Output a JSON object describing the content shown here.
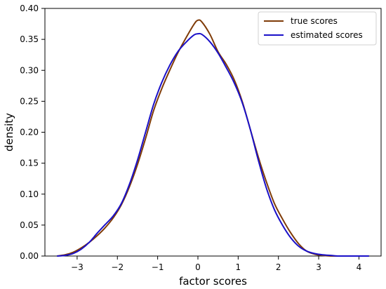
{
  "chart_data": {
    "type": "line",
    "title": "",
    "xlabel": "factor scores",
    "ylabel": "density",
    "xlim": [
      -3.8,
      4.55
    ],
    "ylim": [
      0,
      0.4
    ],
    "xticks": [
      -3,
      -2,
      -1,
      0,
      1,
      2,
      3,
      4
    ],
    "yticks": [
      0.0,
      0.05,
      0.1,
      0.15,
      0.2,
      0.25,
      0.3,
      0.35,
      0.4
    ],
    "xtick_labels": [
      "−3",
      "−2",
      "−1",
      "0",
      "1",
      "2",
      "3",
      "4"
    ],
    "ytick_labels": [
      "0.00",
      "0.05",
      "0.10",
      "0.15",
      "0.20",
      "0.25",
      "0.30",
      "0.35",
      "0.40"
    ],
    "grid": false,
    "legend_position": "top-right",
    "series": [
      {
        "name": "true scores",
        "color": "#7f3b08",
        "x": [
          -3.5,
          -3.3,
          -3.1,
          -2.9,
          -2.7,
          -2.5,
          -2.3,
          -2.1,
          -1.9,
          -1.7,
          -1.5,
          -1.3,
          -1.1,
          -0.9,
          -0.7,
          -0.5,
          -0.3,
          -0.1,
          0.0,
          0.1,
          0.3,
          0.5,
          0.7,
          0.9,
          1.1,
          1.3,
          1.5,
          1.7,
          1.9,
          2.1,
          2.3,
          2.5,
          2.7,
          2.9,
          3.1,
          3.3,
          3.5,
          3.7,
          3.9,
          4.1,
          4.25
        ],
        "y": [
          0.0,
          0.002,
          0.006,
          0.013,
          0.022,
          0.033,
          0.046,
          0.062,
          0.083,
          0.112,
          0.148,
          0.19,
          0.235,
          0.27,
          0.3,
          0.328,
          0.352,
          0.374,
          0.381,
          0.378,
          0.358,
          0.33,
          0.31,
          0.285,
          0.25,
          0.205,
          0.16,
          0.12,
          0.085,
          0.06,
          0.038,
          0.02,
          0.008,
          0.003,
          0.001,
          0.0,
          0.0,
          0.0,
          0.0,
          0.0,
          0.0
        ]
      },
      {
        "name": "estimated scores",
        "color": "#1a10c8",
        "x": [
          -3.5,
          -3.3,
          -3.1,
          -2.9,
          -2.7,
          -2.5,
          -2.3,
          -2.1,
          -1.9,
          -1.7,
          -1.5,
          -1.3,
          -1.1,
          -0.9,
          -0.7,
          -0.5,
          -0.3,
          -0.1,
          0.0,
          0.1,
          0.3,
          0.5,
          0.7,
          0.9,
          1.1,
          1.3,
          1.5,
          1.7,
          1.9,
          2.1,
          2.3,
          2.5,
          2.7,
          2.9,
          3.1,
          3.3,
          3.5,
          3.7,
          3.9,
          4.1,
          4.25
        ],
        "y": [
          0.0,
          0.001,
          0.004,
          0.011,
          0.022,
          0.037,
          0.051,
          0.065,
          0.085,
          0.116,
          0.155,
          0.2,
          0.245,
          0.28,
          0.308,
          0.33,
          0.345,
          0.357,
          0.359,
          0.358,
          0.346,
          0.328,
          0.305,
          0.28,
          0.248,
          0.205,
          0.155,
          0.11,
          0.075,
          0.05,
          0.03,
          0.016,
          0.008,
          0.004,
          0.002,
          0.001,
          0.0,
          0.0,
          0.0,
          0.0,
          0.0
        ]
      }
    ]
  }
}
